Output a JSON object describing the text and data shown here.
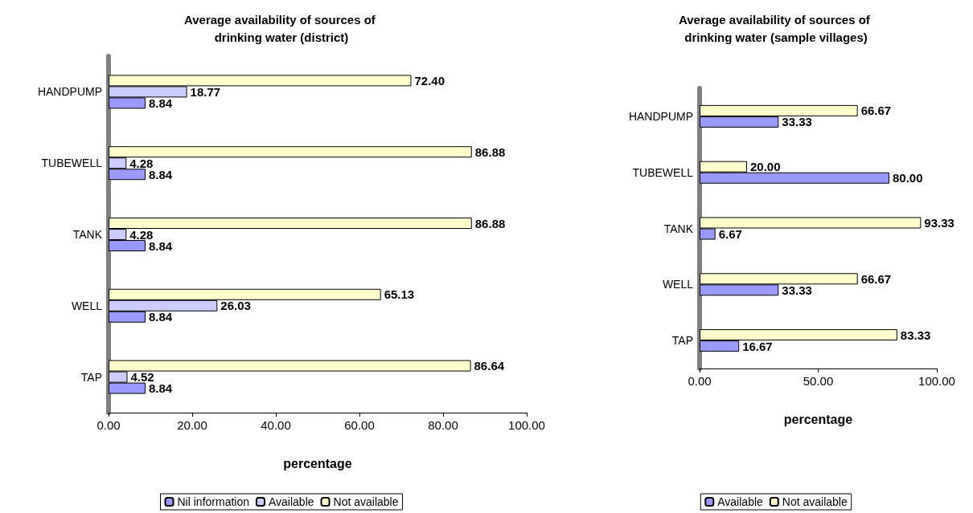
{
  "chart_data": [
    {
      "type": "bar",
      "orientation": "horizontal",
      "title": "Average availability of sources of drinking water (district)",
      "xlabel": "percentage",
      "categories": [
        "HANDPUMP",
        "TUBEWELL",
        "TANK",
        "WELL",
        "TAP"
      ],
      "xlim": [
        0,
        100
      ],
      "xticks": [
        {
          "value": 0,
          "label": "0.00"
        },
        {
          "value": 20,
          "label": "20.00"
        },
        {
          "value": 40,
          "label": "40.00"
        },
        {
          "value": 60,
          "label": "60.00"
        },
        {
          "value": 80,
          "label": "80.00"
        },
        {
          "value": 100,
          "label": "100.00"
        }
      ],
      "legend": "bottom",
      "grid": false,
      "series": [
        {
          "name": "Nil information",
          "color": "#9999ff",
          "values": [
            8.84,
            8.84,
            8.84,
            8.84,
            8.84
          ],
          "value_labels": [
            "8.84",
            "8.84",
            "8.84",
            "8.84",
            "8.84"
          ]
        },
        {
          "name": "Available",
          "color": "#ccccff",
          "values": [
            18.77,
            4.28,
            4.28,
            26.03,
            4.52
          ],
          "value_labels": [
            "18.77",
            "4.28",
            "4.28",
            "26.03",
            "4.52"
          ]
        },
        {
          "name": "Not available",
          "color": "#ffffcc",
          "values": [
            72.4,
            86.88,
            86.88,
            65.13,
            86.64
          ],
          "value_labels": [
            "72.40",
            "86.88",
            "86.88",
            "65.13",
            "86.64"
          ]
        }
      ]
    },
    {
      "type": "bar",
      "orientation": "horizontal",
      "title": "Average availability of sources of drinking water (sample villages)",
      "xlabel": "percentage",
      "categories": [
        "HANDPUMP",
        "TUBEWELL",
        "TANK",
        "WELL",
        "TAP"
      ],
      "xlim": [
        0,
        100
      ],
      "xticks": [
        {
          "value": 0,
          "label": "0.00"
        },
        {
          "value": 50,
          "label": "50.00"
        },
        {
          "value": 100,
          "label": "100.00"
        }
      ],
      "legend": "bottom",
      "grid": false,
      "series": [
        {
          "name": "Available",
          "color": "#9999ff",
          "values": [
            33.33,
            80,
            6.67,
            33.33,
            16.67
          ],
          "value_labels": [
            "33.33",
            "80.00",
            "6.67",
            "33.33",
            "16.67"
          ]
        },
        {
          "name": "Not available",
          "color": "#ffffcc",
          "values": [
            66.67,
            20,
            93.33,
            66.67,
            83.33
          ],
          "value_labels": [
            "66.67",
            "20.00",
            "93.33",
            "66.67",
            "83.33"
          ]
        }
      ]
    }
  ]
}
